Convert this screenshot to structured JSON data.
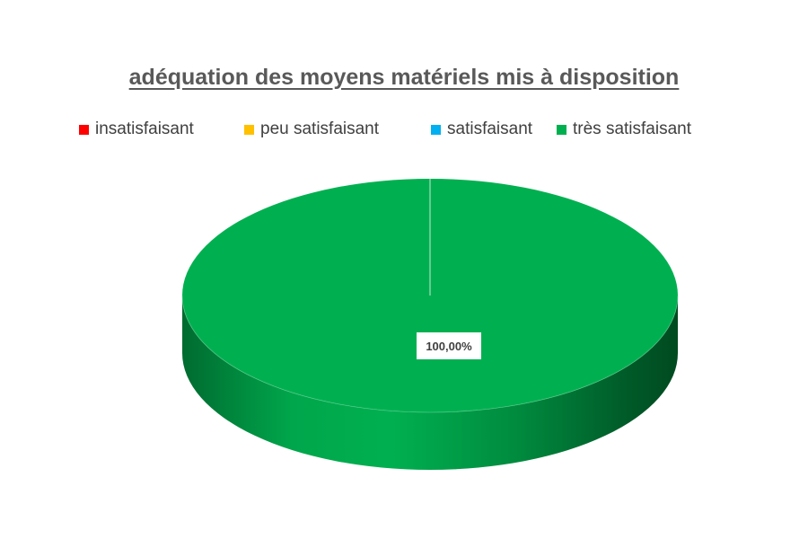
{
  "chart_data": {
    "type": "pie",
    "title": "adéquation des moyens matériels mis à disposition",
    "legend_position": "top",
    "categories": [
      "insatisfaisant",
      "peu satisfaisant",
      "satisfaisant",
      "très satisfaisant"
    ],
    "values": [
      0,
      0,
      0,
      100
    ],
    "colors": [
      "#FF0000",
      "#FFC000",
      "#00B0F0",
      "#00B050"
    ],
    "data_labels": [
      "",
      "",
      "",
      "100,00%"
    ],
    "three_d": true
  }
}
